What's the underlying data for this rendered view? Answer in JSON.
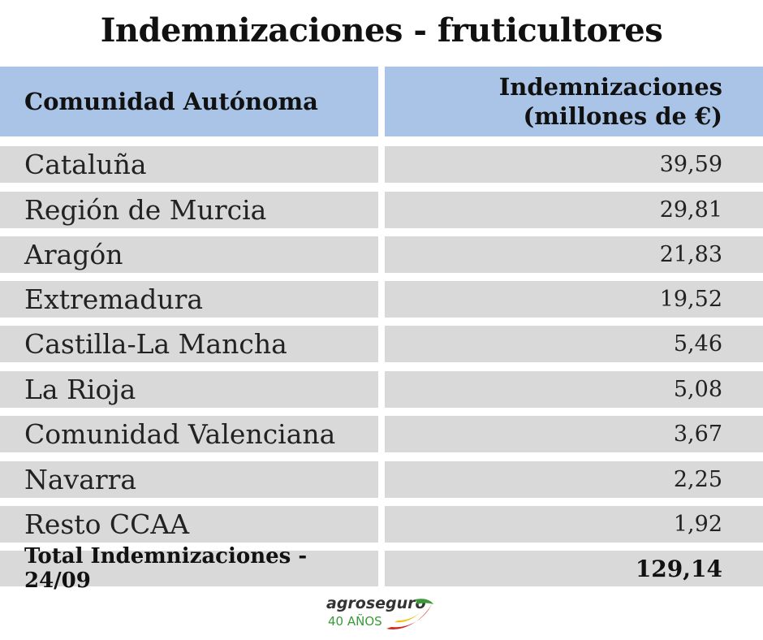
{
  "title": "Indemnizaciones - fruticultores",
  "header": {
    "col1": "Comunidad Autónoma",
    "col2_line1": "Indemnizaciones",
    "col2_line2": "(millones de €)"
  },
  "rows": [
    {
      "region": "Cataluña",
      "value": "39,59"
    },
    {
      "region": "Región de Murcia",
      "value": "29,81"
    },
    {
      "region": "Aragón",
      "value": "21,83"
    },
    {
      "region": "Extremadura",
      "value": "19,52"
    },
    {
      "region": "Castilla-La Mancha",
      "value": "5,46"
    },
    {
      "region": "La Rioja",
      "value": "5,08"
    },
    {
      "region": "Comunidad Valenciana",
      "value": "3,67"
    },
    {
      "region": "Navarra",
      "value": "2,25"
    },
    {
      "region": "Resto CCAA",
      "value": "1,92"
    }
  ],
  "total": {
    "label": "Total Indemnizaciones - 24/09",
    "value": "129,14"
  },
  "logo": {
    "brand": "agroseguro",
    "tagline": "40 AÑOS"
  },
  "colors": {
    "header_bg": "#a9c4e6",
    "row_bg": "#d9d9d9",
    "logo_red": "#d42a1e",
    "logo_yellow": "#f2c21b",
    "logo_green": "#3a9a3a"
  }
}
